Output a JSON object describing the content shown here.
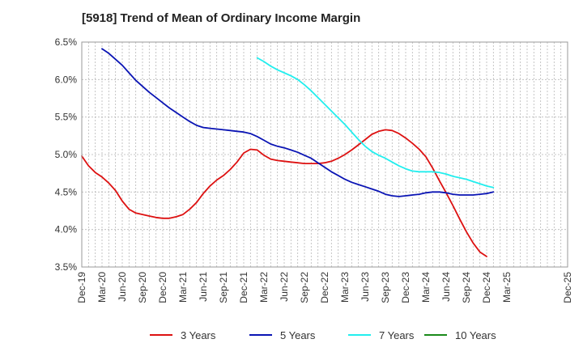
{
  "chart_data": {
    "type": "line",
    "title": "[5918]  Trend of Mean of Ordinary Income Margin",
    "xlabel": "",
    "ylabel": "",
    "ylim": [
      3.5,
      6.5
    ],
    "yticks": [
      "3.5%",
      "4.0%",
      "4.5%",
      "5.0%",
      "5.5%",
      "6.0%",
      "6.5%"
    ],
    "ytick_values": [
      3.5,
      4.0,
      4.5,
      5.0,
      5.5,
      6.0,
      6.5
    ],
    "xticks": [
      "Dec-19",
      "Mar-20",
      "Jun-20",
      "Sep-20",
      "Dec-20",
      "Mar-21",
      "Jun-21",
      "Sep-21",
      "Dec-21",
      "Mar-22",
      "Jun-22",
      "Sep-22",
      "Dec-22",
      "Mar-23",
      "Jun-23",
      "Sep-23",
      "Dec-23",
      "Mar-24",
      "Jun-24",
      "Sep-24",
      "Dec-24",
      "Mar-25",
      "Dec-25"
    ],
    "x_start": "Dec-19",
    "grid": true,
    "legend_position": "bottom",
    "series": [
      {
        "name": "3 Years",
        "color": "#dd1111",
        "points": [
          [
            "Dec-19",
            4.98
          ],
          [
            "Jan-20",
            4.85
          ],
          [
            "Feb-20",
            4.76
          ],
          [
            "Mar-20",
            4.7
          ],
          [
            "Apr-20",
            4.62
          ],
          [
            "May-20",
            4.52
          ],
          [
            "Jun-20",
            4.38
          ],
          [
            "Jul-20",
            4.27
          ],
          [
            "Aug-20",
            4.22
          ],
          [
            "Sep-20",
            4.2
          ],
          [
            "Oct-20",
            4.18
          ],
          [
            "Nov-20",
            4.16
          ],
          [
            "Dec-20",
            4.15
          ],
          [
            "Jan-21",
            4.15
          ],
          [
            "Feb-21",
            4.17
          ],
          [
            "Mar-21",
            4.2
          ],
          [
            "Apr-21",
            4.27
          ],
          [
            "May-21",
            4.36
          ],
          [
            "Jun-21",
            4.48
          ],
          [
            "Jul-21",
            4.58
          ],
          [
            "Aug-21",
            4.66
          ],
          [
            "Sep-21",
            4.72
          ],
          [
            "Oct-21",
            4.8
          ],
          [
            "Nov-21",
            4.9
          ],
          [
            "Dec-21",
            5.02
          ],
          [
            "Jan-22",
            5.07
          ],
          [
            "Feb-22",
            5.06
          ],
          [
            "Mar-22",
            4.99
          ],
          [
            "Apr-22",
            4.94
          ],
          [
            "May-22",
            4.92
          ],
          [
            "Jun-22",
            4.91
          ],
          [
            "Jul-22",
            4.9
          ],
          [
            "Aug-22",
            4.89
          ],
          [
            "Sep-22",
            4.88
          ],
          [
            "Oct-22",
            4.88
          ],
          [
            "Nov-22",
            4.88
          ],
          [
            "Dec-22",
            4.89
          ],
          [
            "Jan-23",
            4.91
          ],
          [
            "Feb-23",
            4.95
          ],
          [
            "Mar-23",
            5.0
          ],
          [
            "Apr-23",
            5.06
          ],
          [
            "May-23",
            5.13
          ],
          [
            "Jun-23",
            5.2
          ],
          [
            "Jul-23",
            5.27
          ],
          [
            "Aug-23",
            5.31
          ],
          [
            "Sep-23",
            5.33
          ],
          [
            "Oct-23",
            5.32
          ],
          [
            "Nov-23",
            5.28
          ],
          [
            "Dec-23",
            5.22
          ],
          [
            "Jan-24",
            5.15
          ],
          [
            "Feb-24",
            5.07
          ],
          [
            "Mar-24",
            4.97
          ],
          [
            "Apr-24",
            4.82
          ],
          [
            "May-24",
            4.65
          ],
          [
            "Jun-24",
            4.49
          ],
          [
            "Jul-24",
            4.32
          ],
          [
            "Aug-24",
            4.14
          ],
          [
            "Sep-24",
            3.97
          ],
          [
            "Oct-24",
            3.82
          ],
          [
            "Nov-24",
            3.7
          ],
          [
            "Dec-24",
            3.64
          ]
        ]
      },
      {
        "name": "5 Years",
        "color": "#0a14b4",
        "points": [
          [
            "Mar-20",
            6.41
          ],
          [
            "Apr-20",
            6.35
          ],
          [
            "May-20",
            6.27
          ],
          [
            "Jun-20",
            6.19
          ],
          [
            "Jul-20",
            6.09
          ],
          [
            "Aug-20",
            5.99
          ],
          [
            "Sep-20",
            5.91
          ],
          [
            "Oct-20",
            5.83
          ],
          [
            "Nov-20",
            5.76
          ],
          [
            "Dec-20",
            5.69
          ],
          [
            "Jan-21",
            5.62
          ],
          [
            "Feb-21",
            5.56
          ],
          [
            "Mar-21",
            5.5
          ],
          [
            "Apr-21",
            5.44
          ],
          [
            "May-21",
            5.39
          ],
          [
            "Jun-21",
            5.36
          ],
          [
            "Jul-21",
            5.35
          ],
          [
            "Aug-21",
            5.34
          ],
          [
            "Sep-21",
            5.33
          ],
          [
            "Oct-21",
            5.32
          ],
          [
            "Nov-21",
            5.31
          ],
          [
            "Dec-21",
            5.3
          ],
          [
            "Jan-22",
            5.28
          ],
          [
            "Feb-22",
            5.24
          ],
          [
            "Mar-22",
            5.19
          ],
          [
            "Apr-22",
            5.14
          ],
          [
            "May-22",
            5.11
          ],
          [
            "Jun-22",
            5.09
          ],
          [
            "Jul-22",
            5.06
          ],
          [
            "Aug-22",
            5.03
          ],
          [
            "Sep-22",
            4.99
          ],
          [
            "Oct-22",
            4.95
          ],
          [
            "Nov-22",
            4.89
          ],
          [
            "Dec-22",
            4.83
          ],
          [
            "Jan-23",
            4.77
          ],
          [
            "Feb-23",
            4.72
          ],
          [
            "Mar-23",
            4.67
          ],
          [
            "Apr-23",
            4.63
          ],
          [
            "May-23",
            4.6
          ],
          [
            "Jun-23",
            4.57
          ],
          [
            "Jul-23",
            4.54
          ],
          [
            "Aug-23",
            4.51
          ],
          [
            "Sep-23",
            4.47
          ],
          [
            "Oct-23",
            4.45
          ],
          [
            "Nov-23",
            4.44
          ],
          [
            "Dec-23",
            4.45
          ],
          [
            "Jan-24",
            4.46
          ],
          [
            "Feb-24",
            4.47
          ],
          [
            "Mar-24",
            4.49
          ],
          [
            "Apr-24",
            4.5
          ],
          [
            "May-24",
            4.5
          ],
          [
            "Jun-24",
            4.49
          ],
          [
            "Jul-24",
            4.47
          ],
          [
            "Aug-24",
            4.46
          ],
          [
            "Sep-24",
            4.46
          ],
          [
            "Oct-24",
            4.46
          ],
          [
            "Nov-24",
            4.47
          ],
          [
            "Dec-24",
            4.48
          ],
          [
            "Jan-25",
            4.5
          ]
        ]
      },
      {
        "name": "7 Years",
        "color": "#22eeee",
        "points": [
          [
            "Feb-22",
            6.29
          ],
          [
            "Mar-22",
            6.24
          ],
          [
            "Apr-22",
            6.18
          ],
          [
            "May-22",
            6.13
          ],
          [
            "Jun-22",
            6.09
          ],
          [
            "Jul-22",
            6.05
          ],
          [
            "Aug-22",
            6.0
          ],
          [
            "Sep-22",
            5.93
          ],
          [
            "Oct-22",
            5.85
          ],
          [
            "Nov-22",
            5.76
          ],
          [
            "Dec-22",
            5.67
          ],
          [
            "Jan-23",
            5.58
          ],
          [
            "Feb-23",
            5.49
          ],
          [
            "Mar-23",
            5.4
          ],
          [
            "Apr-23",
            5.3
          ],
          [
            "May-23",
            5.2
          ],
          [
            "Jun-23",
            5.11
          ],
          [
            "Jul-23",
            5.04
          ],
          [
            "Aug-23",
            4.99
          ],
          [
            "Sep-23",
            4.95
          ],
          [
            "Oct-23",
            4.9
          ],
          [
            "Nov-23",
            4.85
          ],
          [
            "Dec-23",
            4.81
          ],
          [
            "Jan-24",
            4.78
          ],
          [
            "Feb-24",
            4.77
          ],
          [
            "Mar-24",
            4.77
          ],
          [
            "Apr-24",
            4.77
          ],
          [
            "May-24",
            4.76
          ],
          [
            "Jun-24",
            4.74
          ],
          [
            "Jul-24",
            4.71
          ],
          [
            "Aug-24",
            4.69
          ],
          [
            "Sep-24",
            4.67
          ],
          [
            "Oct-24",
            4.64
          ],
          [
            "Nov-24",
            4.61
          ],
          [
            "Dec-24",
            4.58
          ],
          [
            "Jan-25",
            4.56
          ]
        ]
      },
      {
        "name": "10 Years",
        "color": "#1a8a1a",
        "points": []
      }
    ]
  }
}
